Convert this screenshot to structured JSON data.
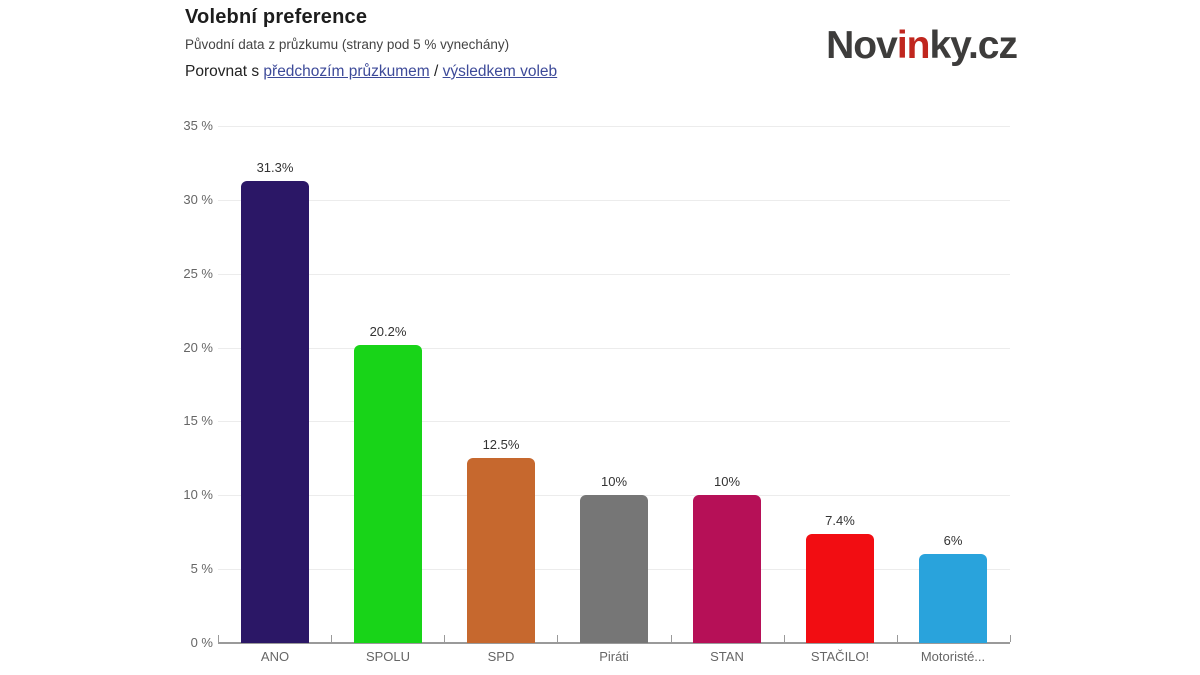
{
  "header": {
    "title": "Volební preference",
    "subtitle": "Původní data z průzkumu (strany pod 5 % vynechány)",
    "compare_prefix": "Porovnat s ",
    "compare_link_previous": "předchozím průzkumem",
    "compare_separator": " / ",
    "compare_link_results": "výsledkem voleb",
    "link_color": "#3d4a99"
  },
  "logo": {
    "text_full": "Novinky.cz",
    "part1": "Nov",
    "part2": "in",
    "part3": "ky.cz",
    "dark_color": "#3d3c3b",
    "accent_color": "#c0261e"
  },
  "chart_data": {
    "type": "bar",
    "title": "Volební preference",
    "categories": [
      "ANO",
      "SPOLU",
      "SPD",
      "Piráti",
      "STAN",
      "STAČILO!",
      "Motoristé..."
    ],
    "values": [
      31.3,
      20.2,
      12.5,
      10,
      10,
      7.4,
      6
    ],
    "value_labels": [
      "31.3%",
      "20.2%",
      "12.5%",
      "10%",
      "10%",
      "7.4%",
      "6%"
    ],
    "bar_colors": [
      "#2b1766",
      "#18d418",
      "#c6682e",
      "#767676",
      "#b61057",
      "#f20d12",
      "#29a3dc"
    ],
    "xlabel": "",
    "ylabel": "",
    "ylim": [
      0,
      35
    ],
    "ytick_values": [
      0,
      5,
      10,
      15,
      20,
      25,
      30,
      35
    ],
    "ytick_labels": [
      "0 %",
      "5 %",
      "10 %",
      "15 %",
      "20 %",
      "25 %",
      "30 %",
      "35 %"
    ],
    "grid": true,
    "legend": false
  }
}
